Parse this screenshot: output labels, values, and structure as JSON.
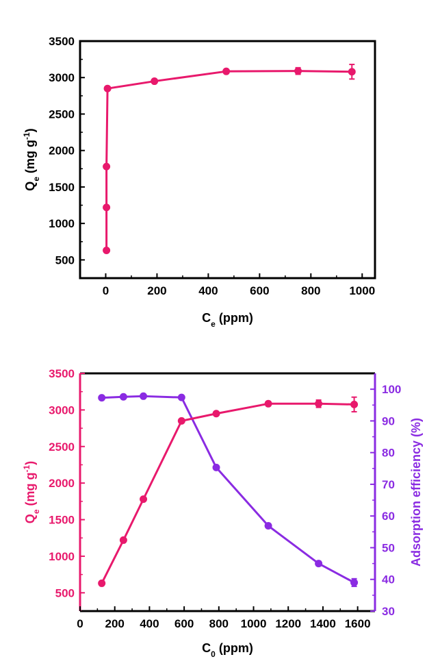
{
  "colors": {
    "pink": "#e8196c",
    "purple": "#8a2be2",
    "black": "#000000"
  },
  "chart_data": [
    {
      "type": "line",
      "x_label": {
        "main": "C",
        "sub": "e",
        "rest": " (ppm)"
      },
      "y_label": {
        "main": "Q",
        "sub": "e",
        "rest": " (mg g",
        "sup": "-1",
        "close": ")"
      },
      "xlim": [
        -100,
        1050
      ],
      "ylim": [
        250,
        3500
      ],
      "xticks": [
        "0",
        "200",
        "400",
        "600",
        "800",
        "1000"
      ],
      "yticks": [
        "500",
        "1000",
        "1500",
        "2000",
        "2500",
        "3000",
        "3500"
      ],
      "series": [
        {
          "x": [
            3,
            3,
            3,
            7,
            190,
            470,
            750,
            960
          ],
          "y": [
            630,
            1220,
            1780,
            2850,
            2950,
            3085,
            3090,
            3080
          ],
          "err": [
            10,
            10,
            10,
            15,
            20,
            25,
            45,
            100
          ]
        }
      ]
    },
    {
      "type": "line",
      "x_label": {
        "main": "C",
        "sub": "0",
        "rest": " (ppm)"
      },
      "y_label": {
        "main": "Q",
        "sub": "e",
        "rest": " (mg g",
        "sup": "-1",
        "close": ")"
      },
      "y2_label": "Adsorption efficiency (%)",
      "xlim": [
        0,
        1700
      ],
      "ylim": [
        250,
        3500
      ],
      "y2lim": [
        30,
        105
      ],
      "xticks": [
        "0",
        "200",
        "400",
        "600",
        "800",
        "1000",
        "1200",
        "1400",
        "1600"
      ],
      "yticks": [
        "500",
        "1000",
        "1500",
        "2000",
        "2500",
        "3000",
        "3500"
      ],
      "y2ticks": [
        "30",
        "40",
        "50",
        "60",
        "70",
        "80",
        "90",
        "100"
      ],
      "series": [
        {
          "axis": "left",
          "x": [
            125,
            250,
            365,
            585,
            785,
            1085,
            1375,
            1580
          ],
          "y": [
            630,
            1220,
            1780,
            2850,
            2950,
            3085,
            3085,
            3075
          ],
          "err": [
            15,
            15,
            15,
            15,
            20,
            30,
            50,
            100
          ]
        },
        {
          "axis": "right",
          "x": [
            125,
            250,
            365,
            585,
            785,
            1085,
            1375,
            1580
          ],
          "y": [
            97.3,
            97.6,
            97.8,
            97.4,
            75.3,
            56.9,
            45.0,
            39.0
          ],
          "err": [
            0.4,
            0.4,
            0.4,
            0.4,
            0.6,
            0.6,
            0.7,
            1.2
          ]
        }
      ]
    }
  ]
}
